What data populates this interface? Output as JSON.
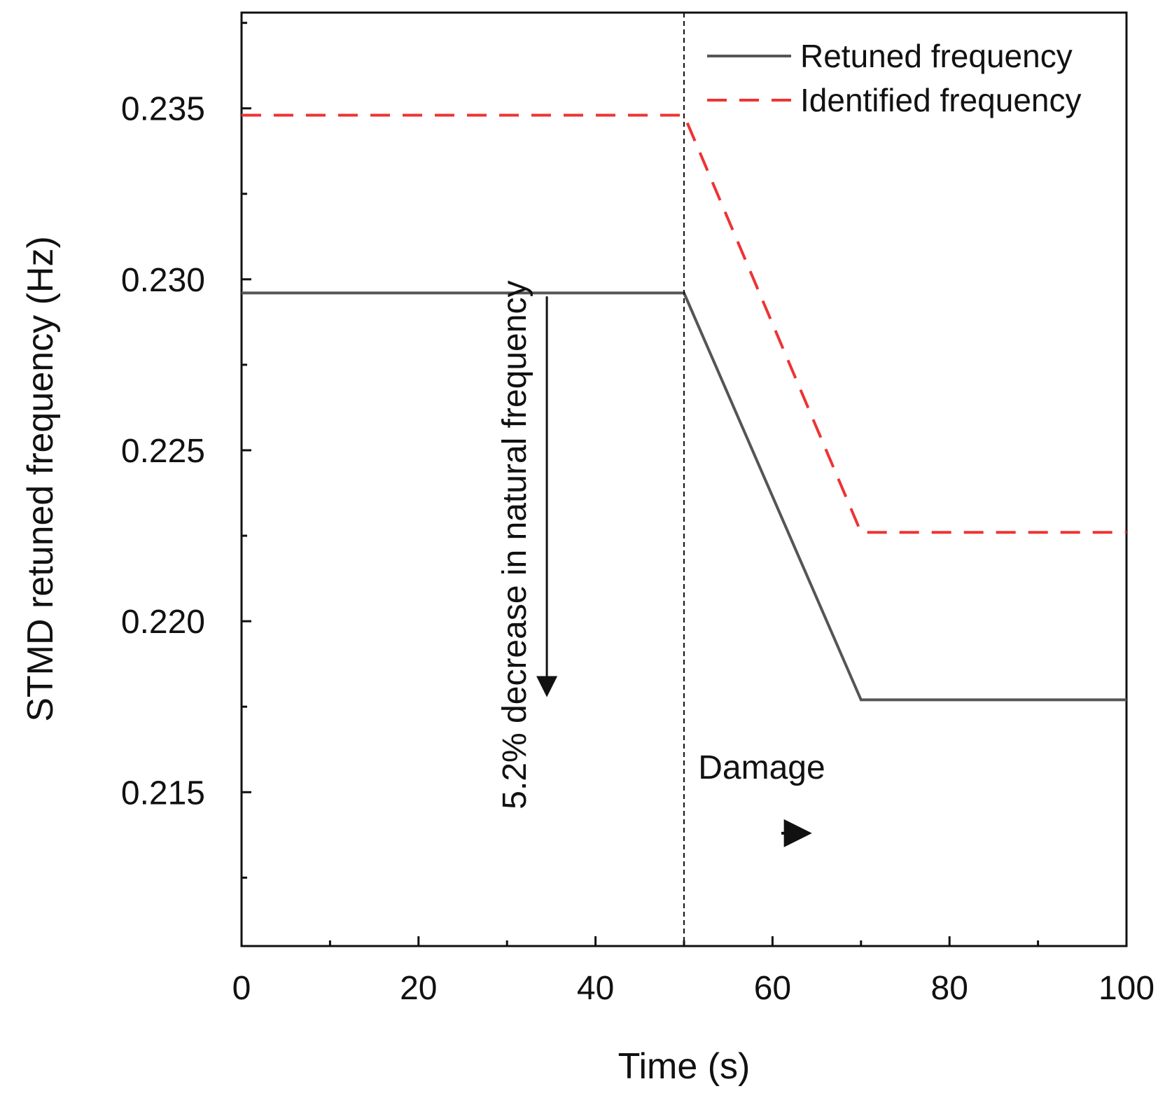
{
  "chart_data": {
    "type": "line",
    "xlabel": "Time (s)",
    "ylabel": "STMD retuned frequency  (Hz)",
    "xlim": [
      0,
      100
    ],
    "ylim": [
      0.2105,
      0.2378
    ],
    "xticks": [
      0,
      20,
      40,
      60,
      80,
      100
    ],
    "xtick_labels": [
      "0",
      "20",
      "40",
      "60",
      "80",
      "100"
    ],
    "yticks": [
      0.215,
      0.22,
      0.225,
      0.23,
      0.235
    ],
    "ytick_labels": [
      "0.215",
      "0.220",
      "0.225",
      "0.230",
      "0.235"
    ],
    "grid": false,
    "legend_position": "top-right",
    "series": [
      {
        "name": "Retuned frequency",
        "color": "#555555",
        "style": "solid",
        "x": [
          0,
          50,
          70,
          100
        ],
        "y": [
          0.2296,
          0.2296,
          0.2177,
          0.2177
        ]
      },
      {
        "name": "Identified frequency",
        "color": "#ee3333",
        "style": "dashed",
        "x": [
          0,
          50,
          70,
          100
        ],
        "y": [
          0.2348,
          0.2348,
          0.2226,
          0.2226
        ]
      }
    ],
    "vline": {
      "x": 50,
      "style": "dotted",
      "color": "#111111"
    },
    "annotations": {
      "decrease_text": "5.2% decrease in natural frequency",
      "decrease_arrow": {
        "x": 34.5,
        "y_from": 0.2295,
        "y_to": 0.2178
      },
      "damage_text": "Damage",
      "damage_anchor": {
        "x": 52,
        "y": 0.2158
      },
      "damage_arrow": {
        "x_from": 61,
        "x_to": 63.5,
        "y": 0.2138
      }
    }
  }
}
